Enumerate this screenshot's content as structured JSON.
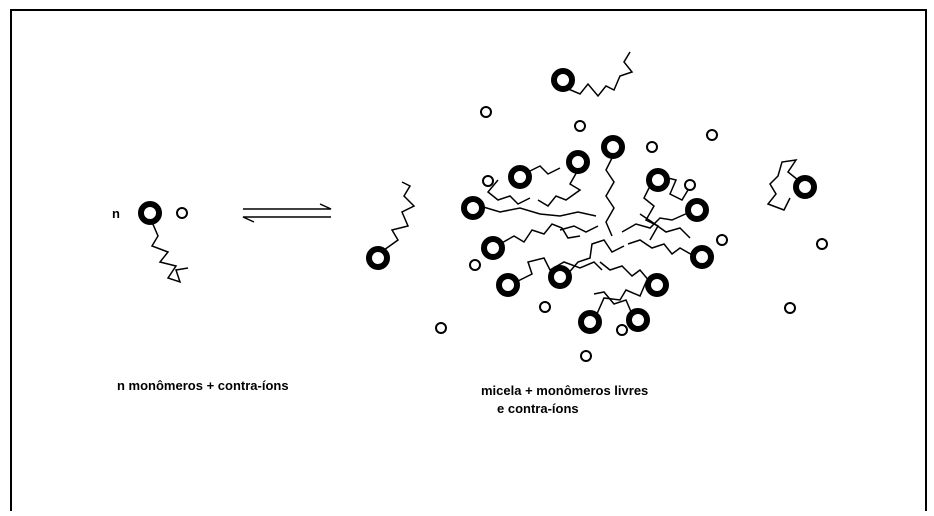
{
  "labels": {
    "monomer_count": "n",
    "left_caption": "n monômeros + contra-íons",
    "right_caption_line1": "micela + monômeros livres",
    "right_caption_line2": "e contra-íons"
  }
}
